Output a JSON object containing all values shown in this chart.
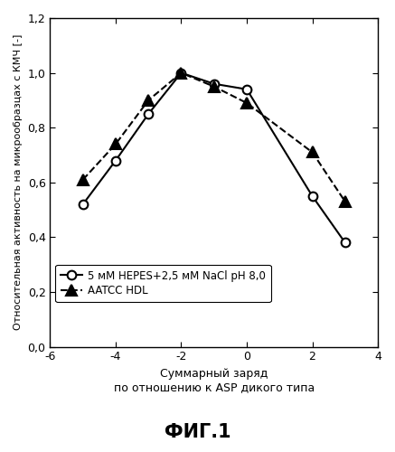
{
  "series1_x": [
    -5,
    -4,
    -3,
    -2,
    -1,
    0,
    2,
    3
  ],
  "series1_y": [
    0.52,
    0.68,
    0.85,
    1.0,
    0.96,
    0.94,
    0.55,
    0.38
  ],
  "series2_x": [
    -5,
    -4,
    -3,
    -2,
    -1,
    0,
    2,
    3
  ],
  "series2_y": [
    0.61,
    0.74,
    0.9,
    1.0,
    0.95,
    0.89,
    0.71,
    0.53
  ],
  "series1_label": "5 мМ HEPES+2,5 мМ NaCl pH 8,0",
  "series2_label": "AATCC HDL",
  "xlabel_line1": "Суммарный заряд",
  "xlabel_line2": "по отношению к ASP дикого типа",
  "ylabel": "Относительная активность на микрообразцах с КМЧ [-]",
  "title": "ФИГ.1",
  "xlim": [
    -6,
    4
  ],
  "ylim": [
    0.0,
    1.2
  ],
  "xticks": [
    -6,
    -4,
    -2,
    0,
    2,
    4
  ],
  "yticks": [
    0.0,
    0.2,
    0.4,
    0.6,
    0.8,
    1.0,
    1.2
  ],
  "background_color": "#ffffff",
  "series1_color": "#000000",
  "series2_color": "#000000"
}
